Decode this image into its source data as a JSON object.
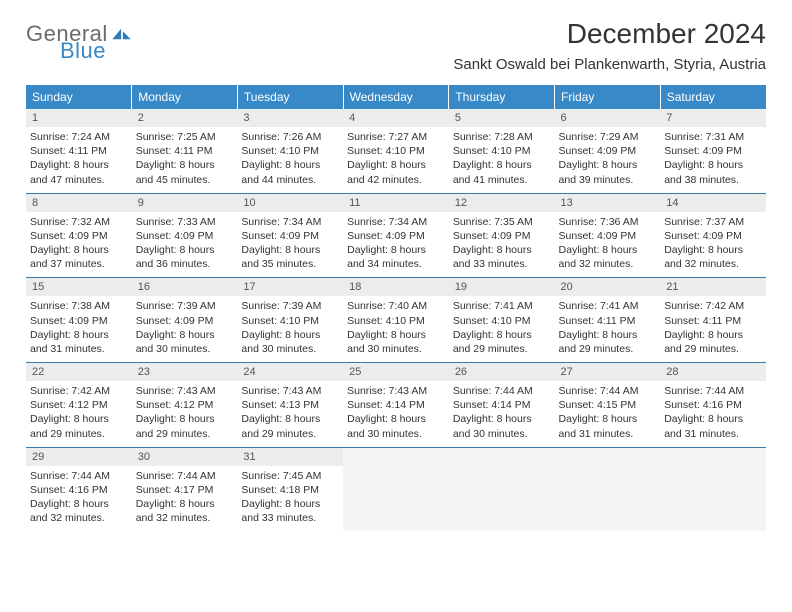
{
  "logo": {
    "word1": "General",
    "word2": "Blue",
    "icon_color": "#2f7ab8"
  },
  "title": "December 2024",
  "location": "Sankt Oswald bei Plankenwarth, Styria, Austria",
  "header_bg": "#3889c7",
  "day_headers": [
    "Sunday",
    "Monday",
    "Tuesday",
    "Wednesday",
    "Thursday",
    "Friday",
    "Saturday"
  ],
  "weeks": [
    [
      {
        "n": "1",
        "sr": "7:24 AM",
        "ss": "4:11 PM",
        "dh": "8",
        "dm": "47"
      },
      {
        "n": "2",
        "sr": "7:25 AM",
        "ss": "4:11 PM",
        "dh": "8",
        "dm": "45"
      },
      {
        "n": "3",
        "sr": "7:26 AM",
        "ss": "4:10 PM",
        "dh": "8",
        "dm": "44"
      },
      {
        "n": "4",
        "sr": "7:27 AM",
        "ss": "4:10 PM",
        "dh": "8",
        "dm": "42"
      },
      {
        "n": "5",
        "sr": "7:28 AM",
        "ss": "4:10 PM",
        "dh": "8",
        "dm": "41"
      },
      {
        "n": "6",
        "sr": "7:29 AM",
        "ss": "4:09 PM",
        "dh": "8",
        "dm": "39"
      },
      {
        "n": "7",
        "sr": "7:31 AM",
        "ss": "4:09 PM",
        "dh": "8",
        "dm": "38"
      }
    ],
    [
      {
        "n": "8",
        "sr": "7:32 AM",
        "ss": "4:09 PM",
        "dh": "8",
        "dm": "37"
      },
      {
        "n": "9",
        "sr": "7:33 AM",
        "ss": "4:09 PM",
        "dh": "8",
        "dm": "36"
      },
      {
        "n": "10",
        "sr": "7:34 AM",
        "ss": "4:09 PM",
        "dh": "8",
        "dm": "35"
      },
      {
        "n": "11",
        "sr": "7:34 AM",
        "ss": "4:09 PM",
        "dh": "8",
        "dm": "34"
      },
      {
        "n": "12",
        "sr": "7:35 AM",
        "ss": "4:09 PM",
        "dh": "8",
        "dm": "33"
      },
      {
        "n": "13",
        "sr": "7:36 AM",
        "ss": "4:09 PM",
        "dh": "8",
        "dm": "32"
      },
      {
        "n": "14",
        "sr": "7:37 AM",
        "ss": "4:09 PM",
        "dh": "8",
        "dm": "32"
      }
    ],
    [
      {
        "n": "15",
        "sr": "7:38 AM",
        "ss": "4:09 PM",
        "dh": "8",
        "dm": "31"
      },
      {
        "n": "16",
        "sr": "7:39 AM",
        "ss": "4:09 PM",
        "dh": "8",
        "dm": "30"
      },
      {
        "n": "17",
        "sr": "7:39 AM",
        "ss": "4:10 PM",
        "dh": "8",
        "dm": "30"
      },
      {
        "n": "18",
        "sr": "7:40 AM",
        "ss": "4:10 PM",
        "dh": "8",
        "dm": "30"
      },
      {
        "n": "19",
        "sr": "7:41 AM",
        "ss": "4:10 PM",
        "dh": "8",
        "dm": "29"
      },
      {
        "n": "20",
        "sr": "7:41 AM",
        "ss": "4:11 PM",
        "dh": "8",
        "dm": "29"
      },
      {
        "n": "21",
        "sr": "7:42 AM",
        "ss": "4:11 PM",
        "dh": "8",
        "dm": "29"
      }
    ],
    [
      {
        "n": "22",
        "sr": "7:42 AM",
        "ss": "4:12 PM",
        "dh": "8",
        "dm": "29"
      },
      {
        "n": "23",
        "sr": "7:43 AM",
        "ss": "4:12 PM",
        "dh": "8",
        "dm": "29"
      },
      {
        "n": "24",
        "sr": "7:43 AM",
        "ss": "4:13 PM",
        "dh": "8",
        "dm": "29"
      },
      {
        "n": "25",
        "sr": "7:43 AM",
        "ss": "4:14 PM",
        "dh": "8",
        "dm": "30"
      },
      {
        "n": "26",
        "sr": "7:44 AM",
        "ss": "4:14 PM",
        "dh": "8",
        "dm": "30"
      },
      {
        "n": "27",
        "sr": "7:44 AM",
        "ss": "4:15 PM",
        "dh": "8",
        "dm": "31"
      },
      {
        "n": "28",
        "sr": "7:44 AM",
        "ss": "4:16 PM",
        "dh": "8",
        "dm": "31"
      }
    ],
    [
      {
        "n": "29",
        "sr": "7:44 AM",
        "ss": "4:16 PM",
        "dh": "8",
        "dm": "32"
      },
      {
        "n": "30",
        "sr": "7:44 AM",
        "ss": "4:17 PM",
        "dh": "8",
        "dm": "32"
      },
      {
        "n": "31",
        "sr": "7:45 AM",
        "ss": "4:18 PM",
        "dh": "8",
        "dm": "33"
      },
      null,
      null,
      null,
      null
    ]
  ],
  "labels": {
    "sunrise": "Sunrise:",
    "sunset": "Sunset:",
    "daylight_prefix": "Daylight:",
    "hours_word": "hours",
    "and_word": "and",
    "minutes_word": "minutes."
  }
}
